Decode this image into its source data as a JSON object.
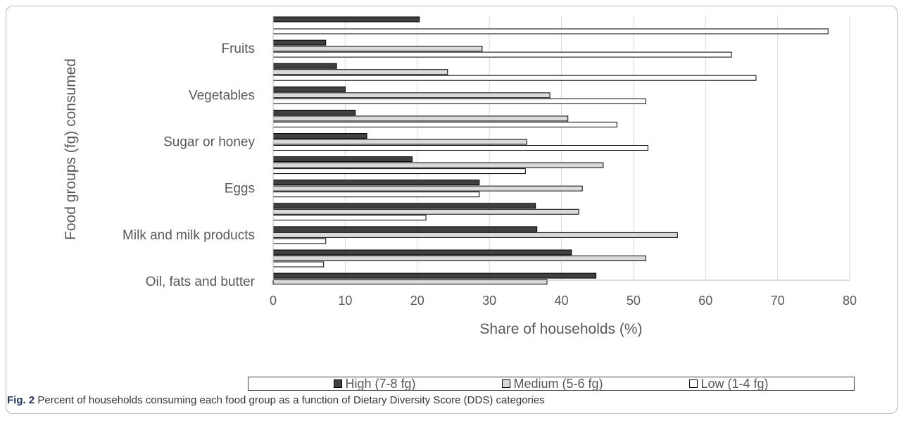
{
  "chart_data": {
    "type": "bar",
    "orientation": "horizontal",
    "categories": [
      "",
      "Fruits",
      "",
      "Vegetables",
      "",
      "Sugar or honey",
      "",
      "Eggs",
      "",
      "Milk and milk products",
      "",
      "Oil, fats and butter"
    ],
    "series": [
      {
        "name": "High (7-8 fg)",
        "color": "#404040",
        "values": [
          20.3,
          7.3,
          8.8,
          10,
          11.4,
          13,
          19.3,
          28.6,
          36.4,
          36.6,
          41.4,
          44.8
        ]
      },
      {
        "name": "Medium (5-6 fg)",
        "color": "#d9d9d9",
        "values": [
          null,
          29,
          24.2,
          38.4,
          40.9,
          35.2,
          45.8,
          42.9,
          42.4,
          56.1,
          51.7,
          38
        ]
      },
      {
        "name": "Low (1-4 fg)",
        "color": "#ffffff",
        "values": [
          77,
          63.6,
          67,
          51.7,
          47.7,
          52,
          35,
          28.6,
          21.2,
          7.3,
          7,
          null
        ]
      }
    ],
    "xlim": [
      0,
      80
    ],
    "xticks": [
      "0",
      "10",
      "20",
      "30",
      "40",
      "50",
      "60",
      "70",
      "80"
    ],
    "xlabel": "Share of  households (%)",
    "ylabel": "Food groups (fg) consumed",
    "grid": true,
    "legend_position": "bottom"
  },
  "caption": {
    "label": "Fig. 2",
    "text": "Percent of households consuming each food group as a function of Dietary Diversity Score (DDS) categories"
  }
}
